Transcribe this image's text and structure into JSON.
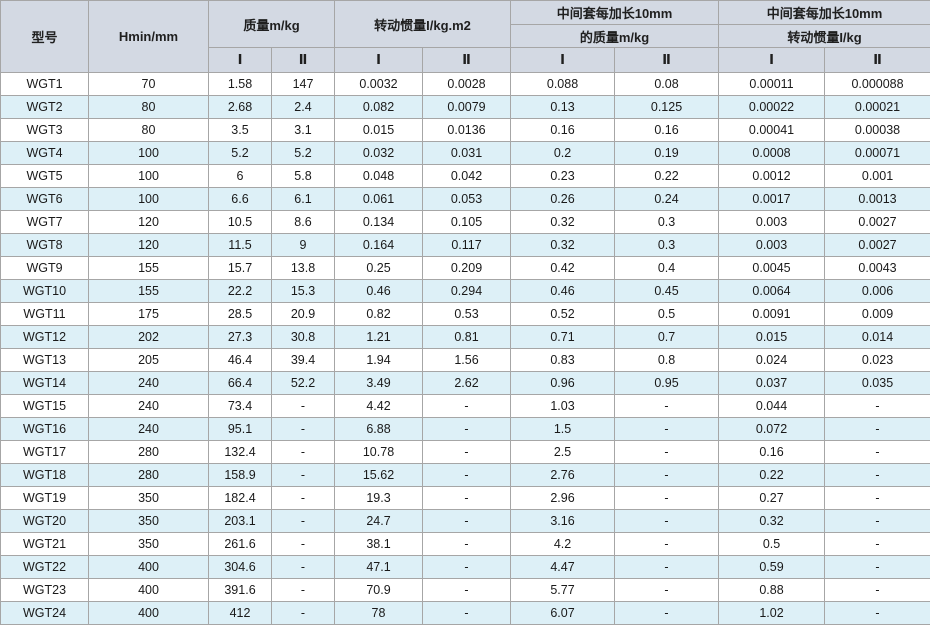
{
  "colors": {
    "header_bg": "#d3d9e3",
    "row_bg": "#ffffff",
    "row_alt_bg": "#ddf0f7",
    "border": "#a6a6a6",
    "text": "#1a1a1a"
  },
  "table": {
    "headers": {
      "model": "型号",
      "hmin": "Hmin/mm",
      "mass": "质量m/kg",
      "inertia": "转动惯量I/kg.m2",
      "ext_mass_line1": "中间套每加长10mm",
      "ext_mass_line2": "的质量m/kg",
      "ext_inertia_line1": "中间套每加长10mm",
      "ext_inertia_line2": "转动惯量I/kg",
      "sub_i": "Ⅰ",
      "sub_ii": "Ⅱ"
    },
    "rows": [
      [
        "WGT1",
        "70",
        "1.58",
        "147",
        "0.0032",
        "0.0028",
        "0.088",
        "0.08",
        "0.00011",
        "0.000088"
      ],
      [
        "WGT2",
        "80",
        "2.68",
        "2.4",
        "0.082",
        "0.0079",
        "0.13",
        "0.125",
        "0.00022",
        "0.00021"
      ],
      [
        "WGT3",
        "80",
        "3.5",
        "3.1",
        "0.015",
        "0.0136",
        "0.16",
        "0.16",
        "0.00041",
        "0.00038"
      ],
      [
        "WGT4",
        "100",
        "5.2",
        "5.2",
        "0.032",
        "0.031",
        "0.2",
        "0.19",
        "0.0008",
        "0.00071"
      ],
      [
        "WGT5",
        "100",
        "6",
        "5.8",
        "0.048",
        "0.042",
        "0.23",
        "0.22",
        "0.0012",
        "0.001"
      ],
      [
        "WGT6",
        "100",
        "6.6",
        "6.1",
        "0.061",
        "0.053",
        "0.26",
        "0.24",
        "0.0017",
        "0.0013"
      ],
      [
        "WGT7",
        "120",
        "10.5",
        "8.6",
        "0.134",
        "0.105",
        "0.32",
        "0.3",
        "0.003",
        "0.0027"
      ],
      [
        "WGT8",
        "120",
        "11.5",
        "9",
        "0.164",
        "0.117",
        "0.32",
        "0.3",
        "0.003",
        "0.0027"
      ],
      [
        "WGT9",
        "155",
        "15.7",
        "13.8",
        "0.25",
        "0.209",
        "0.42",
        "0.4",
        "0.0045",
        "0.0043"
      ],
      [
        "WGT10",
        "155",
        "22.2",
        "15.3",
        "0.46",
        "0.294",
        "0.46",
        "0.45",
        "0.0064",
        "0.006"
      ],
      [
        "WGT11",
        "175",
        "28.5",
        "20.9",
        "0.82",
        "0.53",
        "0.52",
        "0.5",
        "0.0091",
        "0.009"
      ],
      [
        "WGT12",
        "202",
        "27.3",
        "30.8",
        "1.21",
        "0.81",
        "0.71",
        "0.7",
        "0.015",
        "0.014"
      ],
      [
        "WGT13",
        "205",
        "46.4",
        "39.4",
        "1.94",
        "1.56",
        "0.83",
        "0.8",
        "0.024",
        "0.023"
      ],
      [
        "WGT14",
        "240",
        "66.4",
        "52.2",
        "3.49",
        "2.62",
        "0.96",
        "0.95",
        "0.037",
        "0.035"
      ],
      [
        "WGT15",
        "240",
        "73.4",
        "-",
        "4.42",
        "-",
        "1.03",
        "-",
        "0.044",
        "-"
      ],
      [
        "WGT16",
        "240",
        "95.1",
        "-",
        "6.88",
        "-",
        "1.5",
        "-",
        "0.072",
        "-"
      ],
      [
        "WGT17",
        "280",
        "132.4",
        "-",
        "10.78",
        "-",
        "2.5",
        "-",
        "0.16",
        "-"
      ],
      [
        "WGT18",
        "280",
        "158.9",
        "-",
        "15.62",
        "-",
        "2.76",
        "-",
        "0.22",
        "-"
      ],
      [
        "WGT19",
        "350",
        "182.4",
        "-",
        "19.3",
        "-",
        "2.96",
        "-",
        "0.27",
        "-"
      ],
      [
        "WGT20",
        "350",
        "203.1",
        "-",
        "24.7",
        "-",
        "3.16",
        "-",
        "0.32",
        "-"
      ],
      [
        "WGT21",
        "350",
        "261.6",
        "-",
        "38.1",
        "-",
        "4.2",
        "-",
        "0.5",
        "-"
      ],
      [
        "WGT22",
        "400",
        "304.6",
        "-",
        "47.1",
        "-",
        "4.47",
        "-",
        "0.59",
        "-"
      ],
      [
        "WGT23",
        "400",
        "391.6",
        "-",
        "70.9",
        "-",
        "5.77",
        "-",
        "0.88",
        "-"
      ],
      [
        "WGT24",
        "400",
        "412",
        "-",
        "78",
        "-",
        "6.07",
        "-",
        "1.02",
        "-"
      ]
    ]
  }
}
